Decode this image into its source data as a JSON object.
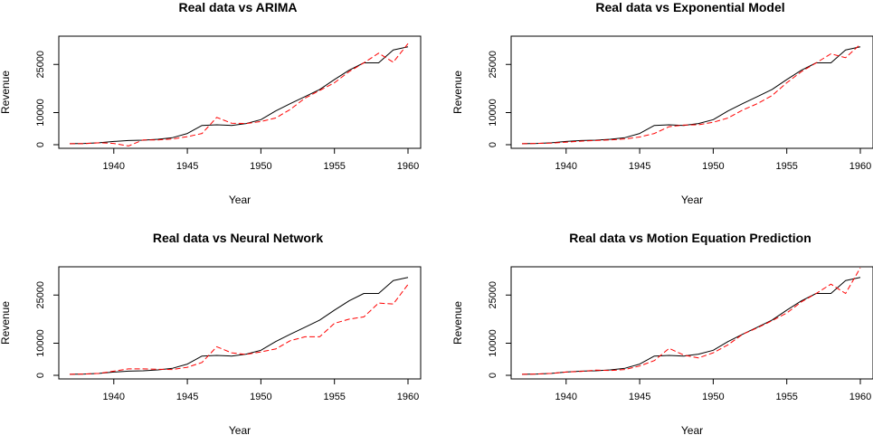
{
  "chart_data": [
    {
      "type": "line",
      "title": "Real data vs ARIMA",
      "xlabel": "Year",
      "ylabel": "Revenue",
      "xlim": [
        1937,
        1960
      ],
      "ylim": [
        0,
        30000
      ],
      "xticks": [
        1940,
        1945,
        1950,
        1955,
        1960
      ],
      "yticks": [
        0,
        10000,
        25000
      ],
      "xticklabels": [
        "1940",
        "1945",
        "1950",
        "1955",
        "1960"
      ],
      "yticklabels": [
        "0",
        "10000",
        "25000"
      ],
      "grid": false,
      "legend": "none",
      "x": [
        1937,
        1938,
        1939,
        1940,
        1941,
        1942,
        1943,
        1944,
        1945,
        1946,
        1947,
        1948,
        1949,
        1950,
        1951,
        1952,
        1953,
        1954,
        1955,
        1956,
        1957,
        1958,
        1959,
        1960
      ],
      "series": [
        {
          "color": "#000000",
          "style": "solid",
          "values": [
            300,
            400,
            600,
            1000,
            1300,
            1400,
            1700,
            2200,
            3500,
            6000,
            6200,
            6000,
            6600,
            7800,
            10500,
            12800,
            15000,
            17200,
            20300,
            23200,
            25500,
            25500,
            29500,
            30500
          ]
        },
        {
          "color": "#ff0000",
          "style": "dashed",
          "values": [
            300,
            300,
            600,
            400,
            -400,
            1500,
            1500,
            1800,
            2500,
            3500,
            8500,
            6700,
            6600,
            7200,
            8300,
            11000,
            14500,
            16900,
            19300,
            22800,
            25500,
            28500,
            25700,
            31500
          ]
        }
      ]
    },
    {
      "type": "line",
      "title": "Real data vs Exponential Model",
      "xlabel": "Year",
      "ylabel": "Revenue",
      "xlim": [
        1937,
        1960
      ],
      "ylim": [
        0,
        30000
      ],
      "xticks": [
        1940,
        1945,
        1950,
        1955,
        1960
      ],
      "yticks": [
        0,
        10000,
        25000
      ],
      "xticklabels": [
        "1940",
        "1945",
        "1950",
        "1955",
        "1960"
      ],
      "yticklabels": [
        "0",
        "10000",
        "25000"
      ],
      "grid": false,
      "legend": "none",
      "x": [
        1937,
        1938,
        1939,
        1940,
        1941,
        1942,
        1943,
        1944,
        1945,
        1946,
        1947,
        1948,
        1949,
        1950,
        1951,
        1952,
        1953,
        1954,
        1955,
        1956,
        1957,
        1958,
        1959,
        1960
      ],
      "series": [
        {
          "color": "#000000",
          "style": "solid",
          "values": [
            300,
            400,
            600,
            1000,
            1300,
            1400,
            1700,
            2200,
            3500,
            6000,
            6200,
            6000,
            6600,
            7800,
            10500,
            12800,
            15000,
            17200,
            20300,
            23200,
            25500,
            25500,
            29500,
            30500
          ]
        },
        {
          "color": "#ff0000",
          "style": "dashed",
          "values": [
            300,
            400,
            500,
            800,
            1100,
            1300,
            1500,
            1800,
            2400,
            3500,
            5600,
            6100,
            6200,
            7000,
            8300,
            10800,
            12800,
            15300,
            19300,
            22800,
            25500,
            28300,
            27100,
            31300
          ]
        }
      ]
    },
    {
      "type": "line",
      "title": "Real data vs Neural Network",
      "xlabel": "Year",
      "ylabel": "Revenue",
      "xlim": [
        1937,
        1960
      ],
      "ylim": [
        0,
        30000
      ],
      "xticks": [
        1940,
        1945,
        1950,
        1955,
        1960
      ],
      "yticks": [
        0,
        10000,
        25000
      ],
      "xticklabels": [
        "1940",
        "1945",
        "1950",
        "1955",
        "1960"
      ],
      "yticklabels": [
        "0",
        "10000",
        "25000"
      ],
      "grid": false,
      "legend": "none",
      "x": [
        1937,
        1938,
        1939,
        1940,
        1941,
        1942,
        1943,
        1944,
        1945,
        1946,
        1947,
        1948,
        1949,
        1950,
        1951,
        1952,
        1953,
        1954,
        1955,
        1956,
        1957,
        1958,
        1959,
        1960
      ],
      "series": [
        {
          "color": "#000000",
          "style": "solid",
          "values": [
            300,
            400,
            600,
            1000,
            1300,
            1400,
            1700,
            2200,
            3500,
            6000,
            6200,
            6000,
            6600,
            7800,
            10500,
            12800,
            15000,
            17200,
            20300,
            23200,
            25500,
            25500,
            29500,
            30500
          ]
        },
        {
          "color": "#ff0000",
          "style": "dashed",
          "values": [
            300,
            400,
            600,
            1300,
            2000,
            2000,
            1900,
            1800,
            2500,
            4000,
            8900,
            7000,
            6500,
            7300,
            8200,
            10800,
            12000,
            12000,
            16200,
            17500,
            18200,
            22500,
            22200,
            28300
          ]
        }
      ]
    },
    {
      "type": "line",
      "title": "Real data vs Motion Equation Prediction",
      "xlabel": "Year",
      "ylabel": "Revenue",
      "xlim": [
        1937,
        1960
      ],
      "ylim": [
        0,
        30000
      ],
      "xticks": [
        1940,
        1945,
        1950,
        1955,
        1960
      ],
      "yticks": [
        0,
        10000,
        25000
      ],
      "xticklabels": [
        "1940",
        "1945",
        "1950",
        "1955",
        "1960"
      ],
      "yticklabels": [
        "0",
        "10000",
        "25000"
      ],
      "grid": false,
      "legend": "none",
      "x": [
        1937,
        1938,
        1939,
        1940,
        1941,
        1942,
        1943,
        1944,
        1945,
        1946,
        1947,
        1948,
        1949,
        1950,
        1951,
        1952,
        1953,
        1954,
        1955,
        1956,
        1957,
        1958,
        1959,
        1960
      ],
      "series": [
        {
          "color": "#000000",
          "style": "solid",
          "values": [
            300,
            400,
            600,
            1000,
            1300,
            1400,
            1700,
            2200,
            3500,
            6000,
            6200,
            6000,
            6600,
            7800,
            10500,
            12800,
            15000,
            17200,
            20300,
            23200,
            25500,
            25500,
            29500,
            30500
          ]
        },
        {
          "color": "#ff0000",
          "style": "dashed",
          "values": [
            300,
            400,
            600,
            1000,
            1200,
            1600,
            1500,
            1800,
            2900,
            4600,
            8400,
            6300,
            5400,
            7000,
            9500,
            12800,
            14800,
            17000,
            19400,
            22900,
            25500,
            28400,
            25500,
            33500
          ]
        }
      ]
    }
  ]
}
